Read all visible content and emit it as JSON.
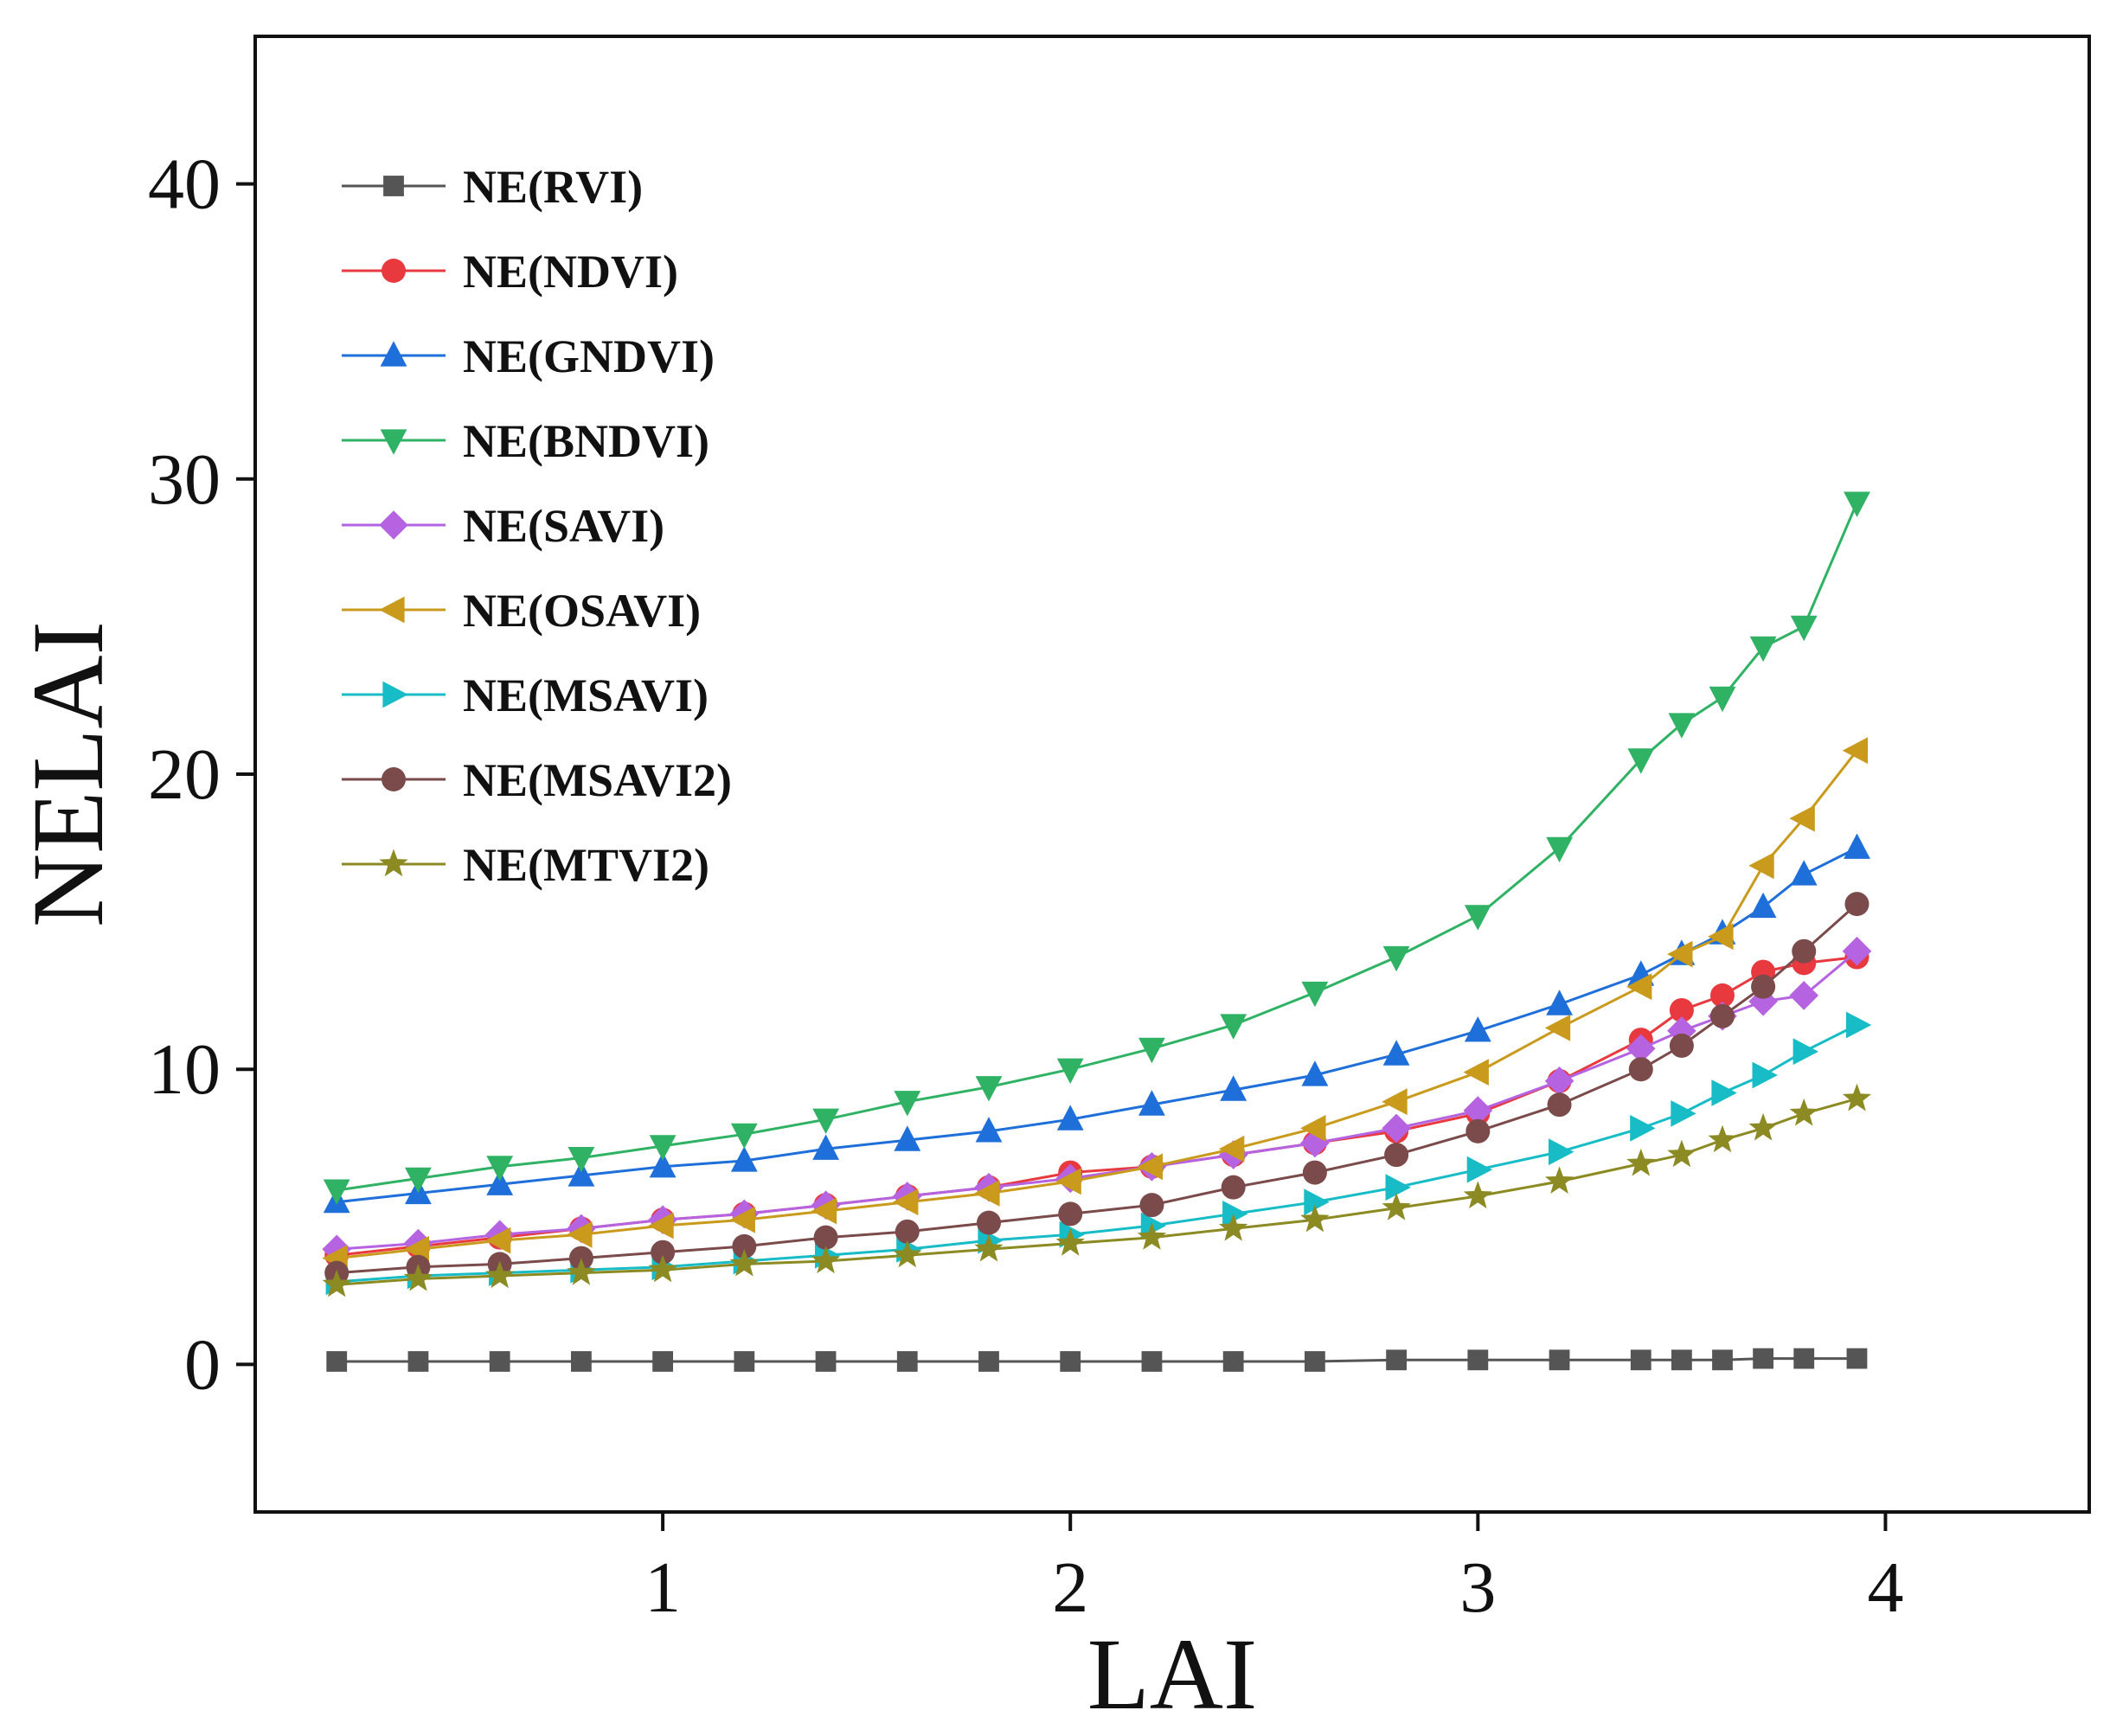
{
  "chart_data": {
    "type": "line",
    "title": "",
    "xlabel": "LAI",
    "ylabel": "NELAI",
    "xlim": [
      0,
      4.5
    ],
    "ylim": [
      -5,
      45
    ],
    "xticks": [
      1,
      2,
      3,
      4
    ],
    "yticks": [
      0,
      10,
      20,
      30,
      40
    ],
    "xtick_labels": [
      "1",
      "2",
      "3",
      "4"
    ],
    "ytick_labels": [
      "0",
      "10",
      "20",
      "30",
      "40"
    ],
    "grid": false,
    "legend_position": "top-left",
    "x": [
      0.2,
      0.4,
      0.6,
      0.8,
      1.0,
      1.2,
      1.4,
      1.6,
      1.8,
      2.0,
      2.2,
      2.4,
      2.6,
      2.8,
      3.0,
      3.2,
      3.4,
      3.5,
      3.6,
      3.7,
      3.8,
      3.93
    ],
    "series": [
      {
        "name": "NE(RVI)",
        "color": "#555555",
        "marker": "square",
        "values": [
          0.1,
          0.1,
          0.1,
          0.1,
          0.1,
          0.1,
          0.1,
          0.1,
          0.1,
          0.1,
          0.1,
          0.1,
          0.1,
          0.15,
          0.15,
          0.15,
          0.15,
          0.15,
          0.15,
          0.2,
          0.2,
          0.2
        ]
      },
      {
        "name": "NE(NDVI)",
        "color": "#e8393f",
        "marker": "circle",
        "values": [
          3.7,
          4.0,
          4.3,
          4.6,
          4.9,
          5.1,
          5.4,
          5.7,
          6.0,
          6.5,
          6.7,
          7.1,
          7.5,
          7.9,
          8.5,
          9.6,
          11.0,
          12.0,
          12.5,
          13.3,
          13.6,
          13.8
        ]
      },
      {
        "name": "NE(GNDVI)",
        "color": "#1e6fd9",
        "marker": "triangle-up",
        "values": [
          5.5,
          5.8,
          6.1,
          6.4,
          6.7,
          6.9,
          7.3,
          7.6,
          7.9,
          8.3,
          8.8,
          9.3,
          9.8,
          10.5,
          11.3,
          12.2,
          13.2,
          13.9,
          14.6,
          15.5,
          16.6,
          17.5
        ]
      },
      {
        "name": "NE(BNDVI)",
        "color": "#2fb264",
        "marker": "triangle-down",
        "values": [
          5.9,
          6.3,
          6.7,
          7.0,
          7.4,
          7.8,
          8.3,
          8.9,
          9.4,
          10.0,
          10.7,
          11.5,
          12.6,
          13.8,
          15.2,
          17.5,
          20.5,
          21.7,
          22.6,
          24.3,
          25.0,
          29.2
        ]
      },
      {
        "name": "NE(SAVI)",
        "color": "#b563e0",
        "marker": "diamond",
        "values": [
          3.9,
          4.1,
          4.4,
          4.6,
          4.9,
          5.1,
          5.4,
          5.7,
          6.0,
          6.3,
          6.7,
          7.1,
          7.5,
          8.0,
          8.6,
          9.6,
          10.7,
          11.3,
          11.8,
          12.3,
          12.5,
          14.0
        ]
      },
      {
        "name": "NE(OSAVI)",
        "color": "#c99a1c",
        "marker": "triangle-left",
        "values": [
          3.6,
          3.9,
          4.2,
          4.4,
          4.7,
          4.9,
          5.2,
          5.5,
          5.8,
          6.2,
          6.7,
          7.3,
          8.0,
          8.9,
          9.9,
          11.4,
          12.8,
          13.9,
          14.5,
          16.9,
          18.5,
          20.8
        ]
      },
      {
        "name": "NE(MSAVI)",
        "color": "#17bcc6",
        "marker": "triangle-right",
        "values": [
          2.8,
          3.0,
          3.1,
          3.2,
          3.3,
          3.5,
          3.7,
          3.9,
          4.2,
          4.4,
          4.7,
          5.1,
          5.5,
          6.0,
          6.6,
          7.2,
          8.0,
          8.5,
          9.2,
          9.8,
          10.6,
          11.5
        ]
      },
      {
        "name": "NE(MSAVI2)",
        "color": "#7b4a4a",
        "marker": "circle",
        "values": [
          3.1,
          3.3,
          3.4,
          3.6,
          3.8,
          4.0,
          4.3,
          4.5,
          4.8,
          5.1,
          5.4,
          6.0,
          6.5,
          7.1,
          7.9,
          8.8,
          10.0,
          10.8,
          11.8,
          12.8,
          14.0,
          15.6
        ]
      },
      {
        "name": "NE(MTVI2)",
        "color": "#8c8a22",
        "marker": "star",
        "values": [
          2.7,
          2.9,
          3.0,
          3.1,
          3.2,
          3.4,
          3.5,
          3.7,
          3.9,
          4.1,
          4.3,
          4.6,
          4.9,
          5.3,
          5.7,
          6.2,
          6.8,
          7.1,
          7.6,
          8.0,
          8.5,
          9.0
        ]
      }
    ]
  }
}
